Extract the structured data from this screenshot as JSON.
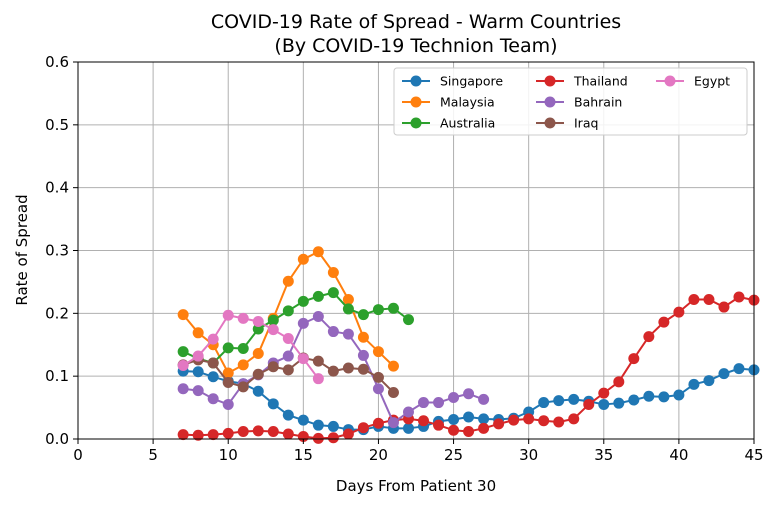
{
  "chart_data": {
    "type": "line",
    "title": "COVID-19 Rate of Spread - Warm Countries",
    "subtitle": "(By COVID-19 Technion Team)",
    "xlabel": "Days From Patient 30",
    "ylabel": "Rate of Spread",
    "xlim": [
      0,
      45
    ],
    "ylim": [
      0,
      0.6
    ],
    "xticks": [
      0,
      5,
      10,
      15,
      20,
      25,
      30,
      35,
      40,
      45
    ],
    "yticks": [
      0.0,
      0.1,
      0.2,
      0.3,
      0.4,
      0.5,
      0.6
    ],
    "xtick_labels": [
      "0",
      "5",
      "10",
      "15",
      "20",
      "25",
      "30",
      "35",
      "40",
      "45"
    ],
    "ytick_labels": [
      "0.0",
      "0.1",
      "0.2",
      "0.3",
      "0.4",
      "0.5",
      "0.6"
    ],
    "grid": true,
    "legend_position": "top-right",
    "legend_columns": 3,
    "series": [
      {
        "name": "Singapore",
        "color": "#1f77b4",
        "x": [
          7,
          8,
          9,
          10,
          11,
          12,
          13,
          14,
          15,
          16,
          17,
          18,
          19,
          20,
          21,
          22,
          23,
          24,
          25,
          26,
          27,
          28,
          29,
          30,
          31,
          32,
          33,
          34,
          35,
          36,
          37,
          38,
          39,
          40,
          41,
          42,
          43,
          44,
          45
        ],
        "y": [
          0.108,
          0.107,
          0.099,
          0.092,
          0.088,
          0.076,
          0.056,
          0.038,
          0.03,
          0.022,
          0.02,
          0.015,
          0.015,
          0.02,
          0.017,
          0.017,
          0.02,
          0.028,
          0.031,
          0.035,
          0.032,
          0.031,
          0.033,
          0.043,
          0.058,
          0.061,
          0.063,
          0.06,
          0.055,
          0.057,
          0.062,
          0.068,
          0.067,
          0.07,
          0.087,
          0.093,
          0.104,
          0.112,
          0.11
        ]
      },
      {
        "name": "Malaysia",
        "color": "#ff7f0e",
        "x": [
          7,
          8,
          9,
          10,
          11,
          12,
          13,
          14,
          15,
          16,
          17,
          18,
          19,
          20,
          21
        ],
        "y": [
          0.198,
          0.169,
          0.15,
          0.105,
          0.118,
          0.136,
          0.192,
          0.251,
          0.286,
          0.298,
          0.265,
          0.222,
          0.162,
          0.139,
          0.116
        ]
      },
      {
        "name": "Australia",
        "color": "#2ca02c",
        "x": [
          7,
          8,
          9,
          10,
          11,
          12,
          13,
          14,
          15,
          16,
          17,
          18,
          19,
          20,
          21,
          22
        ],
        "y": [
          0.139,
          0.128,
          0.121,
          0.145,
          0.144,
          0.175,
          0.189,
          0.204,
          0.219,
          0.227,
          0.233,
          0.207,
          0.198,
          0.206,
          0.208,
          0.19
        ]
      },
      {
        "name": "Thailand",
        "color": "#d62728",
        "x": [
          7,
          8,
          9,
          10,
          11,
          12,
          13,
          14,
          15,
          16,
          17,
          18,
          19,
          20,
          21,
          22,
          23,
          24,
          25,
          26,
          27,
          28,
          29,
          30,
          31,
          32,
          33,
          34,
          35,
          36,
          37,
          38,
          39,
          40,
          41,
          42,
          43,
          44,
          45
        ],
        "y": [
          0.007,
          0.006,
          0.007,
          0.009,
          0.012,
          0.013,
          0.012,
          0.008,
          0.004,
          0.001,
          0.002,
          0.008,
          0.018,
          0.025,
          0.03,
          0.032,
          0.029,
          0.022,
          0.014,
          0.012,
          0.017,
          0.024,
          0.03,
          0.032,
          0.029,
          0.027,
          0.032,
          0.055,
          0.073,
          0.091,
          0.128,
          0.163,
          0.186,
          0.202,
          0.222,
          0.222,
          0.21,
          0.226,
          0.221
        ]
      },
      {
        "name": "Bahrain",
        "color": "#9467bd",
        "x": [
          7,
          8,
          9,
          10,
          11,
          12,
          13,
          14,
          15,
          16,
          17,
          18,
          19,
          20,
          21,
          22,
          23,
          24,
          25,
          26,
          27
        ],
        "y": [
          0.08,
          0.077,
          0.064,
          0.055,
          0.088,
          0.102,
          0.121,
          0.132,
          0.184,
          0.195,
          0.171,
          0.167,
          0.133,
          0.08,
          0.026,
          0.043,
          0.058,
          0.058,
          0.066,
          0.072,
          0.063
        ]
      },
      {
        "name": "Iraq",
        "color": "#8c564b",
        "x": [
          7,
          8,
          9,
          10,
          11,
          12,
          13,
          14,
          15,
          16,
          17,
          18,
          19,
          20,
          21
        ],
        "y": [
          0.118,
          0.126,
          0.121,
          0.09,
          0.083,
          0.103,
          0.115,
          0.11,
          0.129,
          0.124,
          0.108,
          0.113,
          0.111,
          0.098,
          0.074
        ]
      },
      {
        "name": "Egypt",
        "color": "#e377c2",
        "x": [
          7,
          8,
          9,
          10,
          11,
          12,
          13,
          14,
          15,
          16
        ],
        "y": [
          0.117,
          0.132,
          0.159,
          0.197,
          0.192,
          0.187,
          0.174,
          0.16,
          0.128,
          0.096
        ]
      }
    ]
  }
}
